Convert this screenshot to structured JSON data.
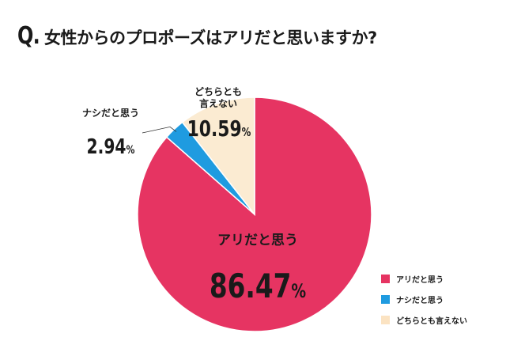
{
  "header": {
    "q_mark": "Q.",
    "question": "女性からのプロポーズはアリだと思いますか?"
  },
  "chart_data": {
    "type": "pie",
    "title": "女性からのプロポーズはアリだと思いますか?",
    "slices": [
      {
        "label": "アリだと思う",
        "value": 86.47,
        "display": "86.47",
        "unit": "%",
        "color": "#e63462"
      },
      {
        "label": "ナシだと思う",
        "value": 2.94,
        "display": "2.94",
        "unit": "%",
        "color": "#1f9be0"
      },
      {
        "label": "どちらとも言えない",
        "value": 10.59,
        "display": "10.59",
        "unit": "%",
        "color": "#fbebd2"
      }
    ],
    "slice_label_lines": [
      [
        "アリだと思う"
      ],
      [
        "ナシだと思う"
      ],
      [
        "どちらとも",
        "言えない"
      ]
    ],
    "legend": {
      "position": "bottom-right",
      "entries": [
        "アリだと思う",
        "ナシだと思う",
        "どちらとも言えない"
      ]
    }
  }
}
